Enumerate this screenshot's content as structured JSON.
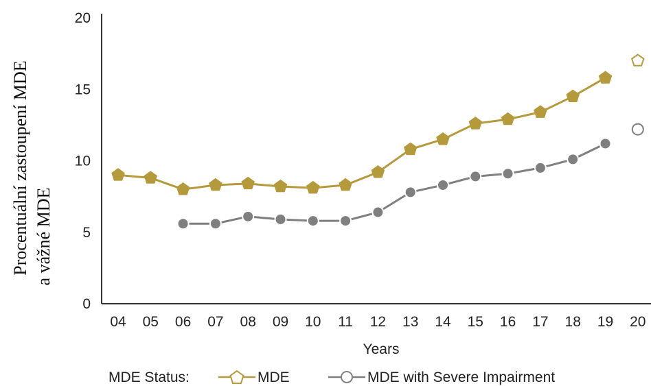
{
  "chart_data": {
    "type": "line",
    "categories": [
      "04",
      "05",
      "06",
      "07",
      "08",
      "09",
      "10",
      "11",
      "12",
      "13",
      "14",
      "15",
      "16",
      "17",
      "18",
      "19",
      "20"
    ],
    "ylabel_lines": [
      "Procentuální zastoupení MDE",
      "a vážné MDE"
    ],
    "xlabel": "Years",
    "ylim": [
      0,
      20
    ],
    "yticks": [
      0,
      5,
      10,
      15,
      20
    ],
    "grid": false,
    "legend": {
      "position": "bottom",
      "title": "MDE Status:",
      "entries": [
        "MDE",
        "MDE with Severe Impairment"
      ]
    },
    "series": [
      {
        "name": "MDE",
        "color": "#B59A3C",
        "marker": "pentagon",
        "values": [
          9.0,
          8.8,
          8.0,
          8.3,
          8.4,
          8.2,
          8.1,
          8.3,
          9.2,
          10.8,
          11.5,
          12.6,
          12.9,
          13.4,
          14.5,
          15.8,
          17.0
        ],
        "hollow_last": true
      },
      {
        "name": "MDE with Severe Impairment",
        "color": "#7F7F7F",
        "marker": "circle",
        "values": [
          null,
          null,
          5.6,
          5.6,
          6.1,
          5.9,
          5.8,
          5.8,
          6.4,
          7.8,
          8.3,
          8.9,
          9.1,
          9.5,
          10.1,
          11.2,
          12.2
        ],
        "hollow_last": true
      }
    ]
  }
}
